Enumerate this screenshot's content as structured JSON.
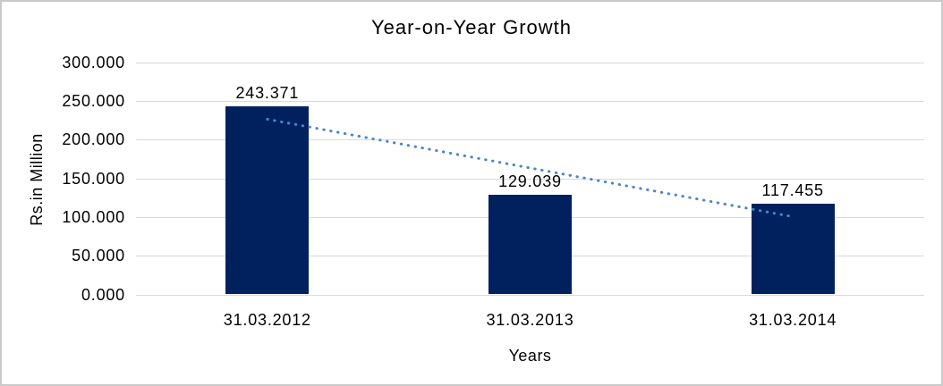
{
  "chart_data": {
    "type": "bar",
    "title": "Year-on-Year Growth",
    "xlabel": "Years",
    "ylabel": "Rs.in Million",
    "categories": [
      "31.03.2012",
      "31.03.2013",
      "31.03.2014"
    ],
    "values": [
      243.371,
      129.039,
      117.455
    ],
    "data_labels": [
      "243.371",
      "129.039",
      "117.455"
    ],
    "yticks": [
      "300.000",
      "250.000",
      "200.000",
      "150.000",
      "100.000",
      "50.000",
      "0.000"
    ],
    "ylim": [
      0,
      300
    ],
    "ytick_step": 50,
    "grid": "horizontal",
    "legend": "none",
    "trendline": {
      "type": "linear",
      "style": "dotted",
      "fitted_values": [
        226.246,
        163.288,
        100.33
      ]
    },
    "colors": {
      "bar": "#01215E",
      "trendline": "#4A86C8",
      "gridline": "#D9D9D9",
      "text": "#000000",
      "frame_border": "#C9C9C9",
      "background": "#FFFFFF"
    }
  }
}
